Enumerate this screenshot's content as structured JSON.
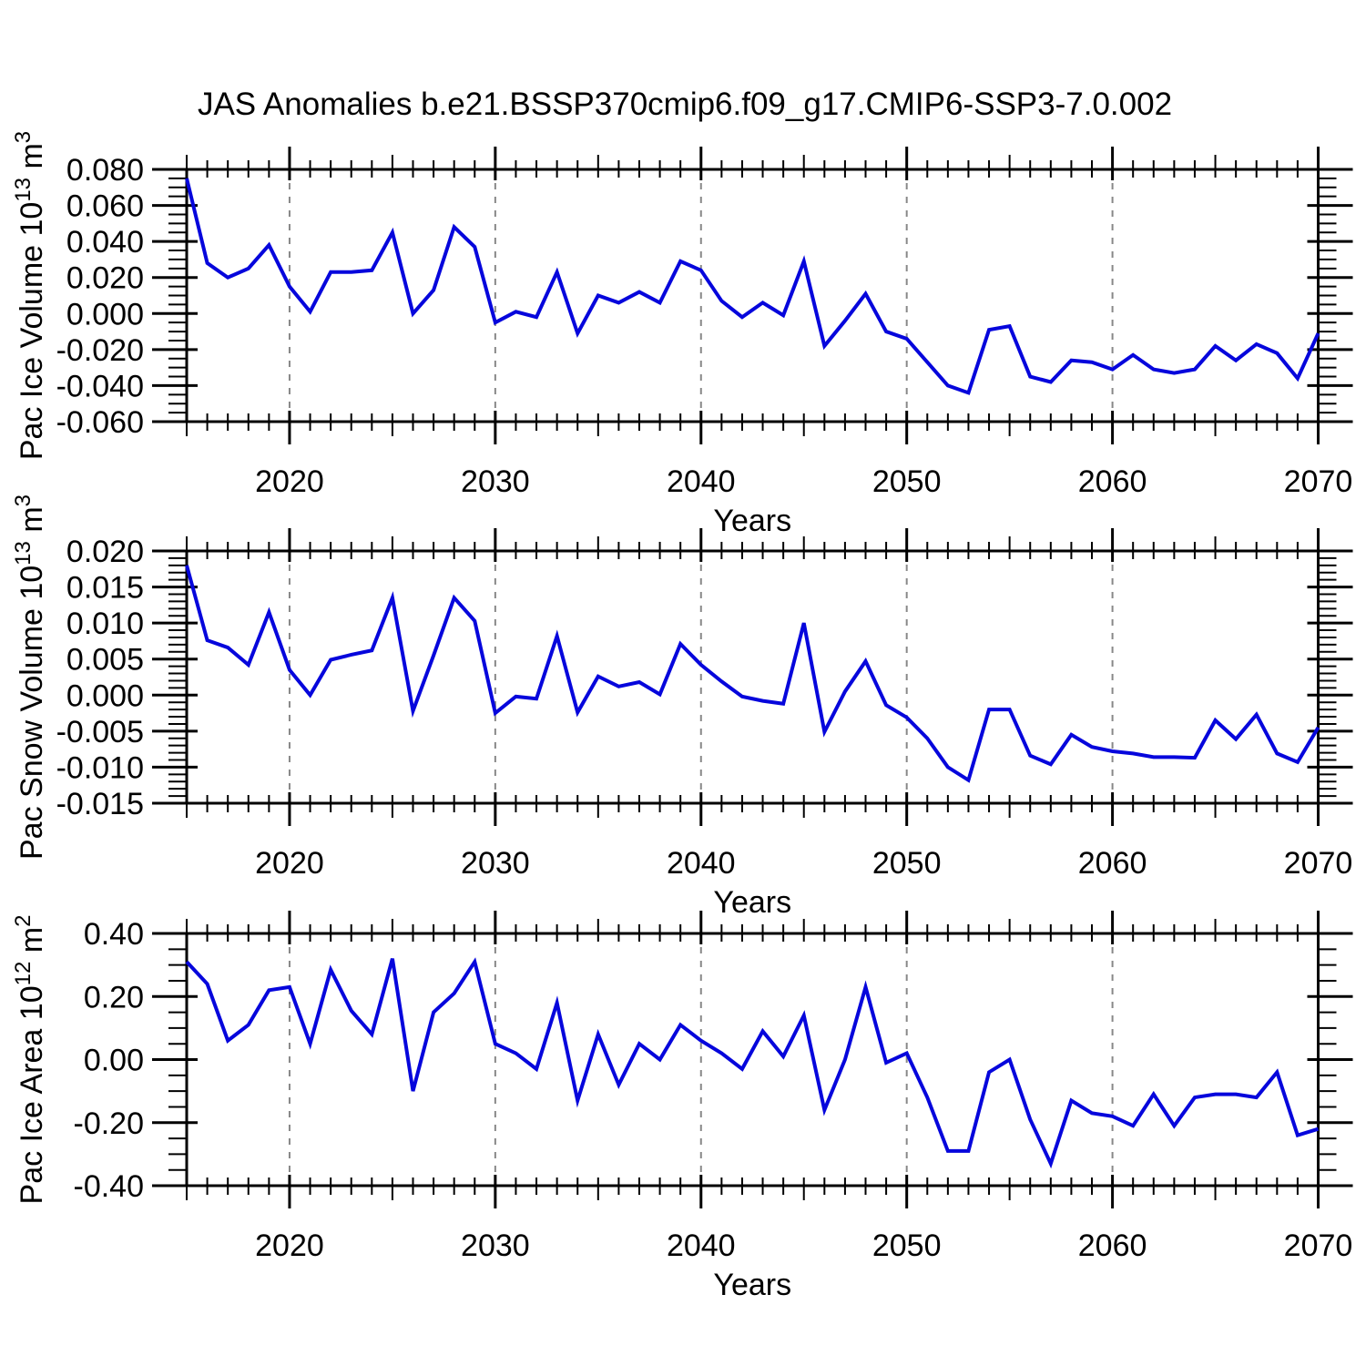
{
  "title": "JAS Anomalies b.e21.BSSP370cmip6.f09_g17.CMIP6-SSP3-7.0.002",
  "xlabel": "Years",
  "colors": {
    "line": "#0606dc",
    "grid": "#888888",
    "axis": "#000000"
  },
  "xlim": [
    2015,
    2070
  ],
  "xtick_labels": [
    "2020",
    "2030",
    "2040",
    "2050",
    "2060",
    "2070"
  ],
  "x_years": [
    2015,
    2016,
    2017,
    2018,
    2019,
    2020,
    2021,
    2022,
    2023,
    2024,
    2025,
    2026,
    2027,
    2028,
    2029,
    2030,
    2031,
    2032,
    2033,
    2034,
    2035,
    2036,
    2037,
    2038,
    2039,
    2040,
    2041,
    2042,
    2043,
    2044,
    2045,
    2046,
    2047,
    2048,
    2049,
    2050,
    2051,
    2052,
    2053,
    2054,
    2055,
    2056,
    2057,
    2058,
    2059,
    2060,
    2061,
    2062,
    2063,
    2064,
    2065,
    2066,
    2067,
    2068,
    2069,
    2070
  ],
  "chart_data": [
    {
      "id": "pac-ice-volume",
      "type": "line",
      "ylabel_text": "Pac Ice Volume 10^13 m^3",
      "ylabel": {
        "pre": "Pac Ice Volume 10",
        "sup1": "13",
        "mid": " m",
        "sup2": "3"
      },
      "ylim": [
        -0.06,
        0.08
      ],
      "ytick_labels": [
        "0.080",
        "0.060",
        "0.040",
        "0.020",
        "0.000",
        "-0.020",
        "-0.040",
        "-0.060"
      ],
      "yminor_step": 0.005,
      "grid": "dashed-vertical-decades",
      "values": [
        0.075,
        0.028,
        0.02,
        0.025,
        0.038,
        0.015,
        0.001,
        0.023,
        0.023,
        0.024,
        0.045,
        0.0,
        0.013,
        0.048,
        0.037,
        -0.005,
        0.001,
        -0.002,
        0.023,
        -0.011,
        0.01,
        0.006,
        0.012,
        0.006,
        0.029,
        0.024,
        0.007,
        -0.002,
        0.006,
        -0.001,
        0.029,
        -0.018,
        -0.004,
        0.011,
        -0.01,
        -0.014,
        -0.027,
        -0.04,
        -0.044,
        -0.009,
        -0.007,
        -0.035,
        -0.038,
        -0.026,
        -0.027,
        -0.031,
        -0.023,
        -0.031,
        -0.033,
        -0.031,
        -0.018,
        -0.026,
        -0.017,
        -0.022,
        -0.036,
        -0.011
      ]
    },
    {
      "id": "pac-snow-volume",
      "type": "line",
      "ylabel_text": "Pac Snow Volume 10^13 m^3",
      "ylabel": {
        "pre": "Pac Snow Volume 10",
        "sup1": "13",
        "mid": " m",
        "sup2": "3"
      },
      "ylim": [
        -0.015,
        0.02
      ],
      "ytick_labels": [
        "0.020",
        "0.015",
        "0.010",
        "0.005",
        "0.000",
        "-0.005",
        "-0.010",
        "-0.015"
      ],
      "yminor_step": 0.001,
      "grid": "dashed-vertical-decades",
      "values": [
        0.018,
        0.0076,
        0.0066,
        0.0042,
        0.0115,
        0.0035,
        0.0,
        0.0049,
        0.0056,
        0.0062,
        0.0135,
        -0.0022,
        0.0055,
        0.0135,
        0.0103,
        -0.0025,
        -0.0002,
        -0.0005,
        0.0082,
        -0.0024,
        0.0026,
        0.0012,
        0.0018,
        0.0001,
        0.0071,
        0.0042,
        0.0019,
        -0.0002,
        -0.0008,
        -0.0012,
        0.01,
        -0.0051,
        0.0005,
        0.0047,
        -0.0014,
        -0.0031,
        -0.006,
        -0.01,
        -0.0118,
        -0.002,
        -0.002,
        -0.0084,
        -0.0096,
        -0.0055,
        -0.0072,
        -0.0078,
        -0.0081,
        -0.0086,
        -0.0086,
        -0.0087,
        -0.0035,
        -0.0061,
        -0.0027,
        -0.0081,
        -0.0093,
        -0.0045
      ]
    },
    {
      "id": "pac-ice-area",
      "type": "line",
      "ylabel_text": "Pac Ice Area 10^12 m^2",
      "ylabel": {
        "pre": "Pac Ice Area 10",
        "sup1": "12",
        "mid": " m",
        "sup2": "2"
      },
      "ylim": [
        -0.4,
        0.4
      ],
      "ytick_labels": [
        "0.40",
        "0.20",
        "0.00",
        "-0.20",
        "-0.40"
      ],
      "yminor_step": 0.05,
      "grid": "dashed-vertical-decades",
      "values": [
        0.31,
        0.24,
        0.06,
        0.11,
        0.22,
        0.23,
        0.05,
        0.285,
        0.155,
        0.08,
        0.32,
        -0.1,
        0.15,
        0.21,
        0.31,
        0.05,
        0.02,
        -0.03,
        0.18,
        -0.13,
        0.08,
        -0.08,
        0.05,
        0.0,
        0.11,
        0.06,
        0.02,
        -0.03,
        0.09,
        0.01,
        0.14,
        -0.16,
        0.0,
        0.23,
        -0.01,
        0.02,
        -0.12,
        -0.29,
        -0.29,
        -0.04,
        0.0,
        -0.19,
        -0.33,
        -0.13,
        -0.17,
        -0.18,
        -0.21,
        -0.11,
        -0.21,
        -0.12,
        -0.11,
        -0.11,
        -0.12,
        -0.04,
        -0.24,
        -0.22
      ]
    }
  ]
}
